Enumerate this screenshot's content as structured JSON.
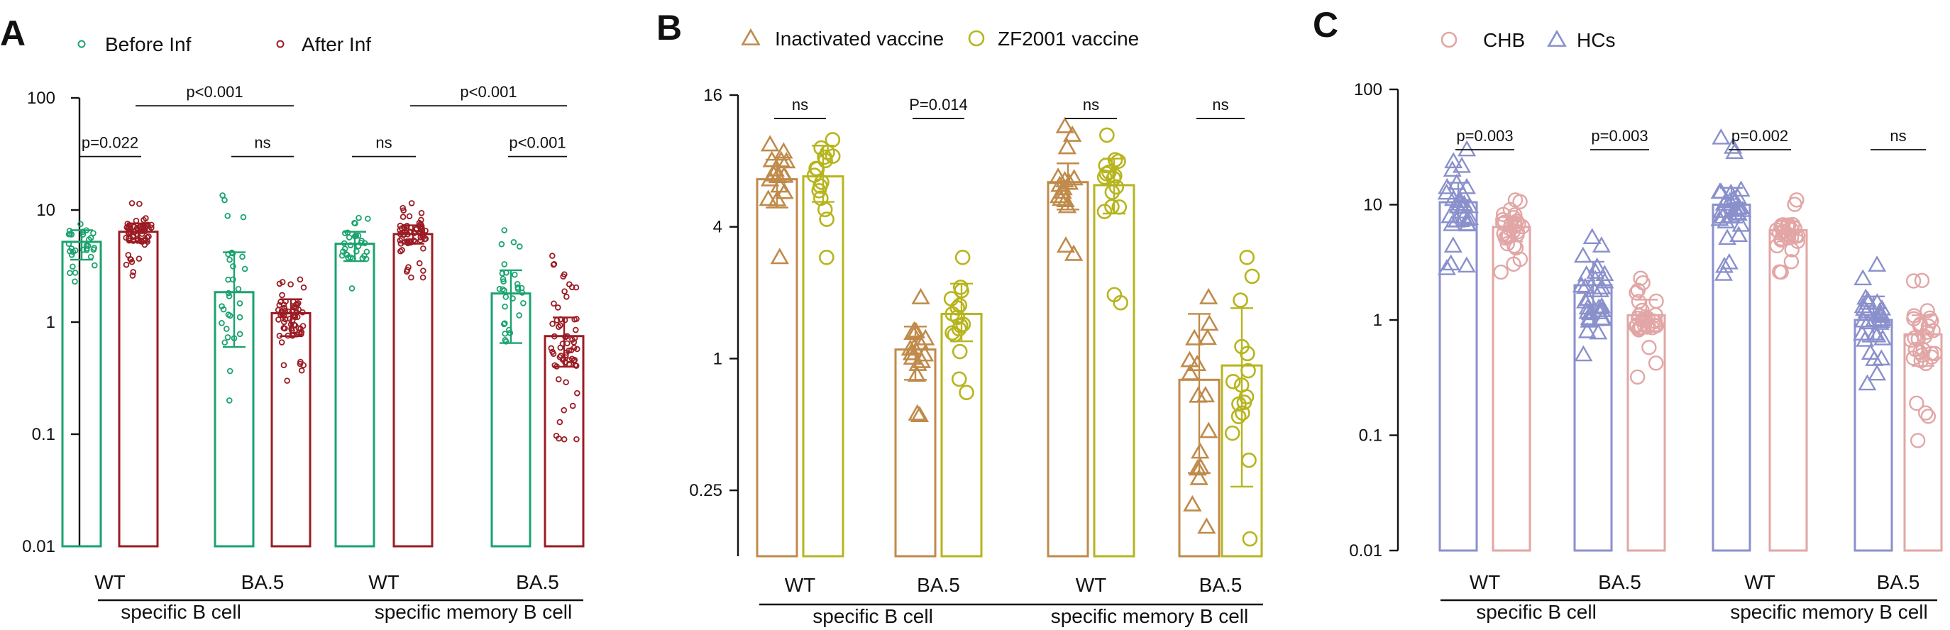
{
  "chart_data": [
    {
      "type": "bar",
      "panel": "A",
      "scale": "log",
      "ylim": [
        0.01,
        100
      ],
      "ticks": [
        {
          "v": 100,
          "label": "100"
        },
        {
          "v": 10,
          "label": "10"
        },
        {
          "v": 1,
          "label": "1"
        },
        {
          "v": 0.1,
          "label": "0.1"
        },
        {
          "v": 0.01,
          "label": "0.01"
        }
      ],
      "legend": [
        {
          "name": "Before Inf",
          "color": "#1aa36f",
          "marker": "circle"
        },
        {
          "name": "After Inf",
          "color": "#9b1c24",
          "marker": "circle"
        }
      ],
      "categories": [
        "WT",
        "BA.5",
        "WT",
        "BA.5"
      ],
      "groups": [
        {
          "label": "specific B cell",
          "cats": [
            0,
            1
          ]
        },
        {
          "label": "specific memory B cell",
          "cats": [
            2,
            3
          ]
        }
      ],
      "bars": [
        {
          "cat": 0,
          "series": 0,
          "mean": 5.2,
          "sd_low": 3.6,
          "sd_high": 6.6,
          "range": [
            2.3,
            7.5
          ],
          "n": 30
        },
        {
          "cat": 0,
          "series": 1,
          "mean": 6.4,
          "sd_low": 5.2,
          "sd_high": 7.6,
          "range": [
            2.6,
            11.5
          ],
          "n": 65
        },
        {
          "cat": 1,
          "series": 0,
          "mean": 1.85,
          "sd_low": 0.6,
          "sd_high": 4.2,
          "range": [
            0.2,
            13.5
          ],
          "n": 30
        },
        {
          "cat": 1,
          "series": 1,
          "mean": 1.2,
          "sd_low": 0.75,
          "sd_high": 1.6,
          "range": [
            0.3,
            2.4
          ],
          "n": 65
        },
        {
          "cat": 2,
          "series": 0,
          "mean": 5.0,
          "sd_low": 3.5,
          "sd_high": 6.4,
          "range": [
            2.0,
            8.5
          ],
          "n": 30
        },
        {
          "cat": 2,
          "series": 1,
          "mean": 6.1,
          "sd_low": 5.0,
          "sd_high": 7.3,
          "range": [
            2.5,
            11.5
          ],
          "n": 65
        },
        {
          "cat": 3,
          "series": 0,
          "mean": 1.8,
          "sd_low": 0.65,
          "sd_high": 2.9,
          "range": [
            0.8,
            6.6
          ],
          "n": 30
        },
        {
          "cat": 3,
          "series": 1,
          "mean": 0.75,
          "sd_low": 0.4,
          "sd_high": 1.1,
          "range": [
            0.09,
            3.9
          ],
          "n": 65
        }
      ],
      "annotations": [
        {
          "label": "p=0.022",
          "from": [
            0,
            0
          ],
          "to": [
            0,
            1
          ],
          "y": 30
        },
        {
          "label": "ns",
          "from": [
            1,
            0
          ],
          "to": [
            1,
            1
          ],
          "y": 30
        },
        {
          "label": "p<0.001",
          "from": [
            0,
            1
          ],
          "to": [
            1,
            1
          ],
          "y": 85
        },
        {
          "label": "ns",
          "from": [
            2,
            0
          ],
          "to": [
            2,
            1
          ],
          "y": 30
        },
        {
          "label": "p<0.001",
          "from": [
            3,
            0
          ],
          "to": [
            3,
            1
          ],
          "y": 30
        },
        {
          "label": "p<0.001",
          "from": [
            2,
            1
          ],
          "to": [
            3,
            1
          ],
          "y": 85
        }
      ]
    },
    {
      "type": "bar",
      "panel": "B",
      "scale": "log",
      "ylim": [
        0.125,
        16
      ],
      "ticks": [
        {
          "v": 16,
          "label": "16"
        },
        {
          "v": 4,
          "label": "4"
        },
        {
          "v": 1,
          "label": "1"
        },
        {
          "v": 0.25,
          "label": "0.25"
        }
      ],
      "legend": [
        {
          "name": "Inactivated vaccine",
          "color": "#c08a4a",
          "marker": "triangle"
        },
        {
          "name": "ZF2001 vaccine",
          "color": "#b7b51e",
          "marker": "circle"
        }
      ],
      "categories": [
        "WT",
        "BA.5",
        "WT",
        "BA.5"
      ],
      "groups": [
        {
          "label": "specific B cell",
          "cats": [
            0,
            1
          ]
        },
        {
          "label": "specific memory B cell",
          "cats": [
            2,
            3
          ]
        }
      ],
      "bars": [
        {
          "cat": 0,
          "series": 0,
          "mean": 6.6,
          "sd_low": 4.9,
          "sd_high": 8.1,
          "range": [
            2.9,
            9.5
          ],
          "n": 16
        },
        {
          "cat": 0,
          "series": 1,
          "mean": 6.8,
          "sd_low": 5.2,
          "sd_high": 9.4,
          "range": [
            2.9,
            10.0
          ],
          "n": 16
        },
        {
          "cat": 1,
          "series": 0,
          "mean": 1.1,
          "sd_low": 0.8,
          "sd_high": 1.4,
          "range": [
            0.55,
            1.9
          ],
          "n": 16
        },
        {
          "cat": 1,
          "series": 1,
          "mean": 1.6,
          "sd_low": 1.2,
          "sd_high": 2.2,
          "range": [
            0.7,
            2.9
          ],
          "n": 16
        },
        {
          "cat": 2,
          "series": 0,
          "mean": 6.4,
          "sd_low": 4.8,
          "sd_high": 7.8,
          "range": [
            3.0,
            11.5
          ],
          "n": 16
        },
        {
          "cat": 2,
          "series": 1,
          "mean": 6.2,
          "sd_low": 4.6,
          "sd_high": 8.2,
          "range": [
            1.8,
            10.5
          ],
          "n": 16
        },
        {
          "cat": 3,
          "series": 0,
          "mean": 0.8,
          "sd_low": 0.3,
          "sd_high": 1.6,
          "range": [
            0.17,
            1.9
          ],
          "n": 16
        },
        {
          "cat": 3,
          "series": 1,
          "mean": 0.93,
          "sd_low": 0.26,
          "sd_high": 1.7,
          "range": [
            0.15,
            2.9
          ],
          "n": 16
        }
      ],
      "annotations": [
        {
          "label": "ns",
          "from": [
            0,
            0
          ],
          "to": [
            0,
            1
          ],
          "y": 12.5
        },
        {
          "label": "P=0.014",
          "from": [
            1,
            0
          ],
          "to": [
            1,
            1
          ],
          "y": 12.5
        },
        {
          "label": "ns",
          "from": [
            2,
            0
          ],
          "to": [
            2,
            1
          ],
          "y": 12.5
        },
        {
          "label": "ns",
          "from": [
            3,
            0
          ],
          "to": [
            3,
            1
          ],
          "y": 12.5
        }
      ]
    },
    {
      "type": "bar",
      "panel": "C",
      "scale": "log",
      "ylim": [
        0.01,
        100
      ],
      "ticks": [
        {
          "v": 100,
          "label": "100"
        },
        {
          "v": 10,
          "label": "10"
        },
        {
          "v": 1,
          "label": "1"
        },
        {
          "v": 0.1,
          "label": "0.1"
        },
        {
          "v": 0.01,
          "label": "0.01"
        }
      ],
      "legend": [
        {
          "name": "CHB",
          "color": "#e2a6a6",
          "marker": "circle"
        },
        {
          "name": "HCs",
          "color": "#8a90cc",
          "marker": "triangle"
        }
      ],
      "categories": [
        "WT",
        "BA.5",
        "WT",
        "BA.5"
      ],
      "groups": [
        {
          "label": "specific B cell",
          "cats": [
            0,
            1
          ]
        },
        {
          "label": "specific memory B cell",
          "cats": [
            2,
            3
          ]
        }
      ],
      "bars": [
        {
          "cat": 0,
          "series": 1,
          "mean": 10.5,
          "sd_low": 6.5,
          "sd_high": 15.5,
          "range": [
            2.8,
            30
          ],
          "n": 30
        },
        {
          "cat": 0,
          "series": 0,
          "mean": 6.4,
          "sd_low": 4.8,
          "sd_high": 7.8,
          "range": [
            2.6,
            11
          ],
          "n": 30
        },
        {
          "cat": 1,
          "series": 1,
          "mean": 2.0,
          "sd_low": 0.9,
          "sd_high": 3.2,
          "range": [
            0.5,
            5.2
          ],
          "n": 30
        },
        {
          "cat": 1,
          "series": 0,
          "mean": 1.1,
          "sd_low": 0.8,
          "sd_high": 1.5,
          "range": [
            0.32,
            2.3
          ],
          "n": 30
        },
        {
          "cat": 2,
          "series": 1,
          "mean": 10.0,
          "sd_low": 7.0,
          "sd_high": 14.0,
          "range": [
            2.5,
            38
          ],
          "n": 30
        },
        {
          "cat": 2,
          "series": 0,
          "mean": 6.0,
          "sd_low": 4.8,
          "sd_high": 7.2,
          "range": [
            2.6,
            11
          ],
          "n": 30
        },
        {
          "cat": 3,
          "series": 1,
          "mean": 1.0,
          "sd_low": 0.65,
          "sd_high": 1.6,
          "range": [
            0.28,
            3.0
          ],
          "n": 30
        },
        {
          "cat": 3,
          "series": 0,
          "mean": 0.75,
          "sd_low": 0.4,
          "sd_high": 1.1,
          "range": [
            0.09,
            2.2
          ],
          "n": 30
        }
      ],
      "annotations": [
        {
          "label": "p=0.003",
          "from": [
            0,
            1
          ],
          "to": [
            0,
            0
          ],
          "y": 30
        },
        {
          "label": "p=0.003",
          "from": [
            1,
            1
          ],
          "to": [
            1,
            0
          ],
          "y": 30
        },
        {
          "label": "p=0.002",
          "from": [
            2,
            1
          ],
          "to": [
            2,
            0
          ],
          "y": 30
        },
        {
          "label": "ns",
          "from": [
            3,
            1
          ],
          "to": [
            3,
            0
          ],
          "y": 30
        }
      ]
    }
  ]
}
